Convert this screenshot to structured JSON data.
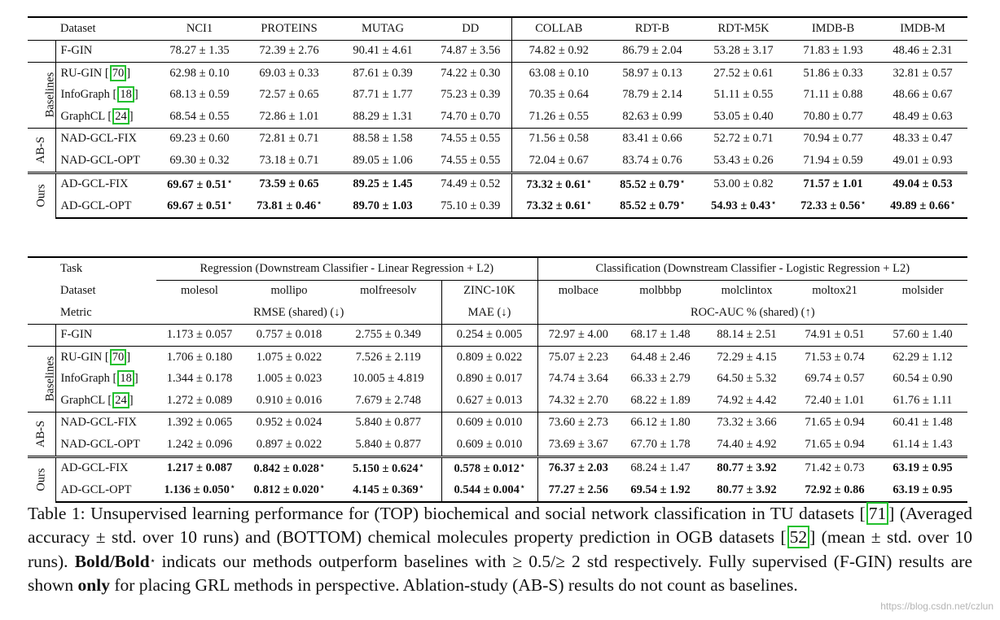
{
  "top": {
    "dataset_label": "Dataset",
    "columns": [
      "NCI1",
      "PROTEINS",
      "MUTAG",
      "DD",
      "COLLAB",
      "RDT-B",
      "RDT-M5K",
      "IMDB-B",
      "IMDB-M"
    ],
    "groups": {
      "baselines": "Baselines",
      "abs": "AB-S",
      "ours": "Ours"
    },
    "rows": {
      "fgin": {
        "name": "F-GIN",
        "cells": [
          "78.27 ± 1.35",
          "72.39 ± 2.76",
          "90.41 ± 4.61",
          "74.87 ± 3.56",
          "74.82 ± 0.92",
          "86.79 ± 2.04",
          "53.28 ± 3.17",
          "71.83 ± 1.93",
          "48.46 ± 2.31"
        ]
      },
      "rugin": {
        "name": "RU-GIN",
        "ref": "70",
        "cells": [
          "62.98 ± 0.10",
          "69.03 ± 0.33",
          "87.61 ± 0.39",
          "74.22 ± 0.30",
          "63.08 ± 0.10",
          "58.97 ± 0.13",
          "27.52 ± 0.61",
          "51.86 ± 0.33",
          "32.81 ± 0.57"
        ]
      },
      "infograph": {
        "name": "InfoGraph",
        "ref": "18",
        "cells": [
          "68.13 ± 0.59",
          "72.57 ± 0.65",
          "87.71 ± 1.77",
          "75.23 ± 0.39",
          "70.35 ± 0.64",
          "78.79 ± 2.14",
          "51.11 ± 0.55",
          "71.11 ± 0.88",
          "48.66 ± 0.67"
        ]
      },
      "graphcl": {
        "name": "GraphCL",
        "ref": "24",
        "cells": [
          "68.54 ± 0.55",
          "72.86 ± 1.01",
          "88.29 ± 1.31",
          "74.70 ± 0.70",
          "71.26 ± 0.55",
          "82.63 ± 0.99",
          "53.05 ± 0.40",
          "70.80 ± 0.77",
          "48.49 ± 0.63"
        ]
      },
      "nadfix": {
        "name": "NAD-GCL-FIX",
        "cells": [
          "69.23 ± 0.60",
          "72.81 ± 0.71",
          "88.58 ± 1.58",
          "74.55 ± 0.55",
          "71.56 ± 0.58",
          "83.41 ± 0.66",
          "52.72 ± 0.71",
          "70.94 ± 0.77",
          "48.33 ± 0.47"
        ]
      },
      "nadopt": {
        "name": "NAD-GCL-OPT",
        "cells": [
          "69.30 ± 0.32",
          "73.18 ± 0.71",
          "89.05 ± 1.06",
          "74.55 ± 0.55",
          "72.04 ± 0.67",
          "83.74 ± 0.76",
          "53.43 ± 0.26",
          "71.94 ± 0.59",
          "49.01 ± 0.93"
        ]
      },
      "adfix": {
        "name": "AD-GCL-FIX",
        "cells": [
          "69.67 ± 0.51",
          "73.59 ± 0.65",
          "89.25 ± 1.45",
          "74.49 ± 0.52",
          "73.32 ± 0.61",
          "85.52 ± 0.79",
          "53.00 ± 0.82",
          "71.57 ± 1.01",
          "49.04 ± 0.53"
        ]
      },
      "adopt": {
        "name": "AD-GCL-OPT",
        "cells": [
          "69.67 ± 0.51",
          "73.81 ± 0.46",
          "89.70 ± 1.03",
          "75.10 ± 0.39",
          "73.32 ± 0.61",
          "85.52 ± 0.79",
          "54.93 ± 0.43",
          "72.33 ± 0.56",
          "49.89 ± 0.66"
        ]
      }
    }
  },
  "bottom": {
    "task_label": "Task",
    "regression_header": "Regression (Downstream Classifier - Linear Regression + L2)",
    "classification_header": "Classification (Downstream Classifier - Logistic Regression + L2)",
    "dataset_label": "Dataset",
    "metric_label": "Metric",
    "columns": [
      "molesol",
      "mollipo",
      "molfreesolv",
      "ZINC-10K",
      "molbace",
      "molbbbp",
      "molclintox",
      "moltox21",
      "molsider"
    ],
    "metric_rmse": "RMSE (shared) (↓)",
    "metric_mae": "MAE (↓)",
    "metric_roc": "ROC-AUC % (shared) (↑)",
    "rows": {
      "fgin": {
        "name": "F-GIN",
        "cells": [
          "1.173 ± 0.057",
          "0.757 ± 0.018",
          "2.755 ± 0.349",
          "0.254 ± 0.005",
          "72.97 ± 4.00",
          "68.17 ± 1.48",
          "88.14 ± 2.51",
          "74.91 ± 0.51",
          "57.60 ± 1.40"
        ]
      },
      "rugin": {
        "name": "RU-GIN",
        "ref": "70",
        "cells": [
          "1.706 ± 0.180",
          "1.075 ± 0.022",
          "7.526 ± 2.119",
          "0.809 ± 0.022",
          "75.07 ± 2.23",
          "64.48 ± 2.46",
          "72.29 ± 4.15",
          "71.53 ± 0.74",
          "62.29 ± 1.12"
        ]
      },
      "infograph": {
        "name": "InfoGraph",
        "ref": "18",
        "cells": [
          "1.344 ± 0.178",
          "1.005 ± 0.023",
          "10.005 ± 4.819",
          "0.890 ± 0.017",
          "74.74 ± 3.64",
          "66.33 ± 2.79",
          "64.50 ± 5.32",
          "69.74 ± 0.57",
          "60.54 ± 0.90"
        ]
      },
      "graphcl": {
        "name": "GraphCL",
        "ref": "24",
        "cells": [
          "1.272 ± 0.089",
          "0.910 ± 0.016",
          "7.679 ± 2.748",
          "0.627 ± 0.013",
          "74.32 ± 2.70",
          "68.22 ± 1.89",
          "74.92 ± 4.42",
          "72.40 ± 1.01",
          "61.76 ± 1.11"
        ]
      },
      "nadfix": {
        "name": "NAD-GCL-FIX",
        "cells": [
          "1.392 ± 0.065",
          "0.952 ± 0.024",
          "5.840 ± 0.877",
          "0.609 ± 0.010",
          "73.60 ± 2.73",
          "66.12 ± 1.80",
          "73.32 ± 3.66",
          "71.65 ± 0.94",
          "60.41 ± 1.48"
        ]
      },
      "nadopt": {
        "name": "NAD-GCL-OPT",
        "cells": [
          "1.242 ± 0.096",
          "0.897 ± 0.022",
          "5.840 ± 0.877",
          "0.609 ± 0.010",
          "73.69 ± 3.67",
          "67.70 ± 1.78",
          "74.40 ± 4.92",
          "71.65 ± 0.94",
          "61.14 ± 1.43"
        ]
      },
      "adfix": {
        "name": "AD-GCL-FIX",
        "cells": [
          "1.217 ± 0.087",
          "0.842 ± 0.028",
          "5.150 ± 0.624",
          "0.578 ± 0.012",
          "76.37 ± 2.03",
          "68.24 ± 1.47",
          "80.77 ± 3.92",
          "71.42 ± 0.73",
          "63.19 ± 0.95"
        ]
      },
      "adopt": {
        "name": "AD-GCL-OPT",
        "cells": [
          "1.136 ± 0.050",
          "0.812 ± 0.020",
          "4.145 ± 0.369",
          "0.544 ± 0.004",
          "77.27 ± 2.56",
          "69.54 ± 1.92",
          "80.77 ± 3.92",
          "72.92 ± 0.86",
          "63.19 ± 0.95"
        ]
      }
    }
  },
  "caption": {
    "label": "Table 1:",
    "p1": "Unsupervised learning performance for (TOP) biochemical and social network classification in TU datasets",
    "ref1": "71",
    "p2": "(Averaged accuracy ± std. over 10 runs) and (BOTTOM) chemical molecules property prediction in OGB datasets",
    "ref2": "52",
    "p3": "(mean ± std. over 10 runs).",
    "bold1": "Bold/Bold",
    "star": "⋆",
    "p4": "indicats our methods outperform baselines with ≥ 0.5/≥ 2 std respectively. Fully supervised (F-GIN) results are shown",
    "bold2": "only",
    "p5": "for placing GRL methods in perspective. Ablation-study (AB-S) results do not count as baselines."
  },
  "watermark": "https://blog.csdn.net/czlun"
}
